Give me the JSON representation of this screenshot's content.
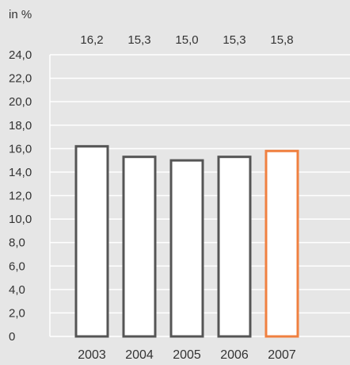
{
  "chart_data": {
    "type": "bar",
    "unit_label": "in %",
    "categories": [
      "2003",
      "2004",
      "2005",
      "2006",
      "2007"
    ],
    "values": [
      16.2,
      15.3,
      15.0,
      15.3,
      15.8
    ],
    "value_labels": [
      "16,2",
      "15,3",
      "15,0",
      "15,3",
      "15,8"
    ],
    "ylim": [
      0,
      24
    ],
    "yticks": [
      0,
      2,
      4,
      6,
      8,
      10,
      12,
      14,
      16,
      18,
      20,
      22,
      24
    ],
    "ytick_labels": [
      "0",
      "2,0",
      "4,0",
      "6,0",
      "8,0",
      "10,0",
      "12,0",
      "14,0",
      "16,0",
      "18,0",
      "20,0",
      "22,0",
      "24,0"
    ],
    "grid": true,
    "highlight_index": 4,
    "colors": {
      "background": "#e6e6e6",
      "grid": "#ffffff",
      "bar_fill": "#ffffff",
      "bar_stroke": "#555555",
      "highlight_stroke": "#f08040",
      "text": "#333333"
    }
  }
}
